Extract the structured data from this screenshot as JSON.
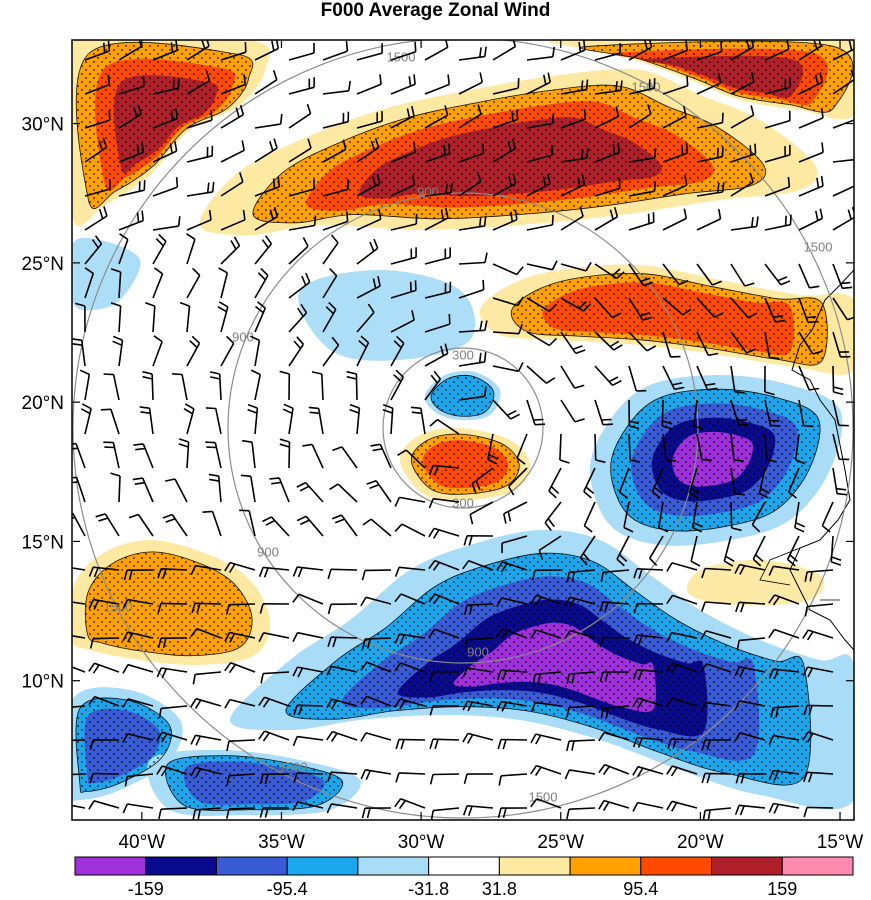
{
  "title": "F000 Average Zonal Wind",
  "chart_data": {
    "type": "heatmap",
    "title": "F000 Average Zonal Wind",
    "lon_ticks": [
      "40°W",
      "35°W",
      "30°W",
      "25°W",
      "20°W",
      "15°W"
    ],
    "lat_ticks": [
      "30°N",
      "25°N",
      "20°N",
      "15°N",
      "10°N"
    ],
    "lon_values": [
      -40,
      -35,
      -30,
      -25,
      -20,
      -15
    ],
    "lat_values": [
      30,
      25,
      20,
      15,
      10
    ],
    "xlim": [
      -42.5,
      -14.5
    ],
    "ylim": [
      5,
      33
    ],
    "range_ring_labels": [
      "300",
      "900",
      "1500"
    ],
    "range_rings_km": [
      300,
      900,
      1500
    ],
    "colorbar": {
      "colors": [
        "#a02fdc",
        "#0a0a8c",
        "#3a5bd6",
        "#1aa7ee",
        "#a9dcf7",
        "#ffffff",
        "#fde9a2",
        "#ffa100",
        "#ff4a00",
        "#b0202a",
        "#ff8ab0"
      ],
      "tick_labels": [
        "-159",
        "-95.4",
        "-31.8",
        "31.8",
        "95.4",
        "159"
      ],
      "tick_values": [
        -159,
        -95.4,
        -31.8,
        31.8,
        95.4,
        159
      ]
    },
    "features": [
      {
        "name": "jet-north-west",
        "sign": "positive",
        "peak": 159
      },
      {
        "name": "jet-north-central",
        "sign": "positive",
        "peak": 159
      },
      {
        "name": "jet-north-east",
        "sign": "positive",
        "peak": 159
      },
      {
        "name": "band-east-25n",
        "sign": "positive",
        "peak": 127
      },
      {
        "name": "storm-core-positive",
        "sign": "positive",
        "peak": 127
      },
      {
        "name": "storm-core-negative",
        "sign": "negative",
        "peak": -63
      },
      {
        "name": "west-positive-blob",
        "sign": "positive",
        "peak": 95.4
      },
      {
        "name": "southern-easterly-band",
        "sign": "negative",
        "peak": -159
      },
      {
        "name": "eastern-easterly-max",
        "sign": "negative",
        "peak": -159
      },
      {
        "name": "southwest-negative",
        "sign": "negative",
        "peak": -127
      }
    ]
  }
}
